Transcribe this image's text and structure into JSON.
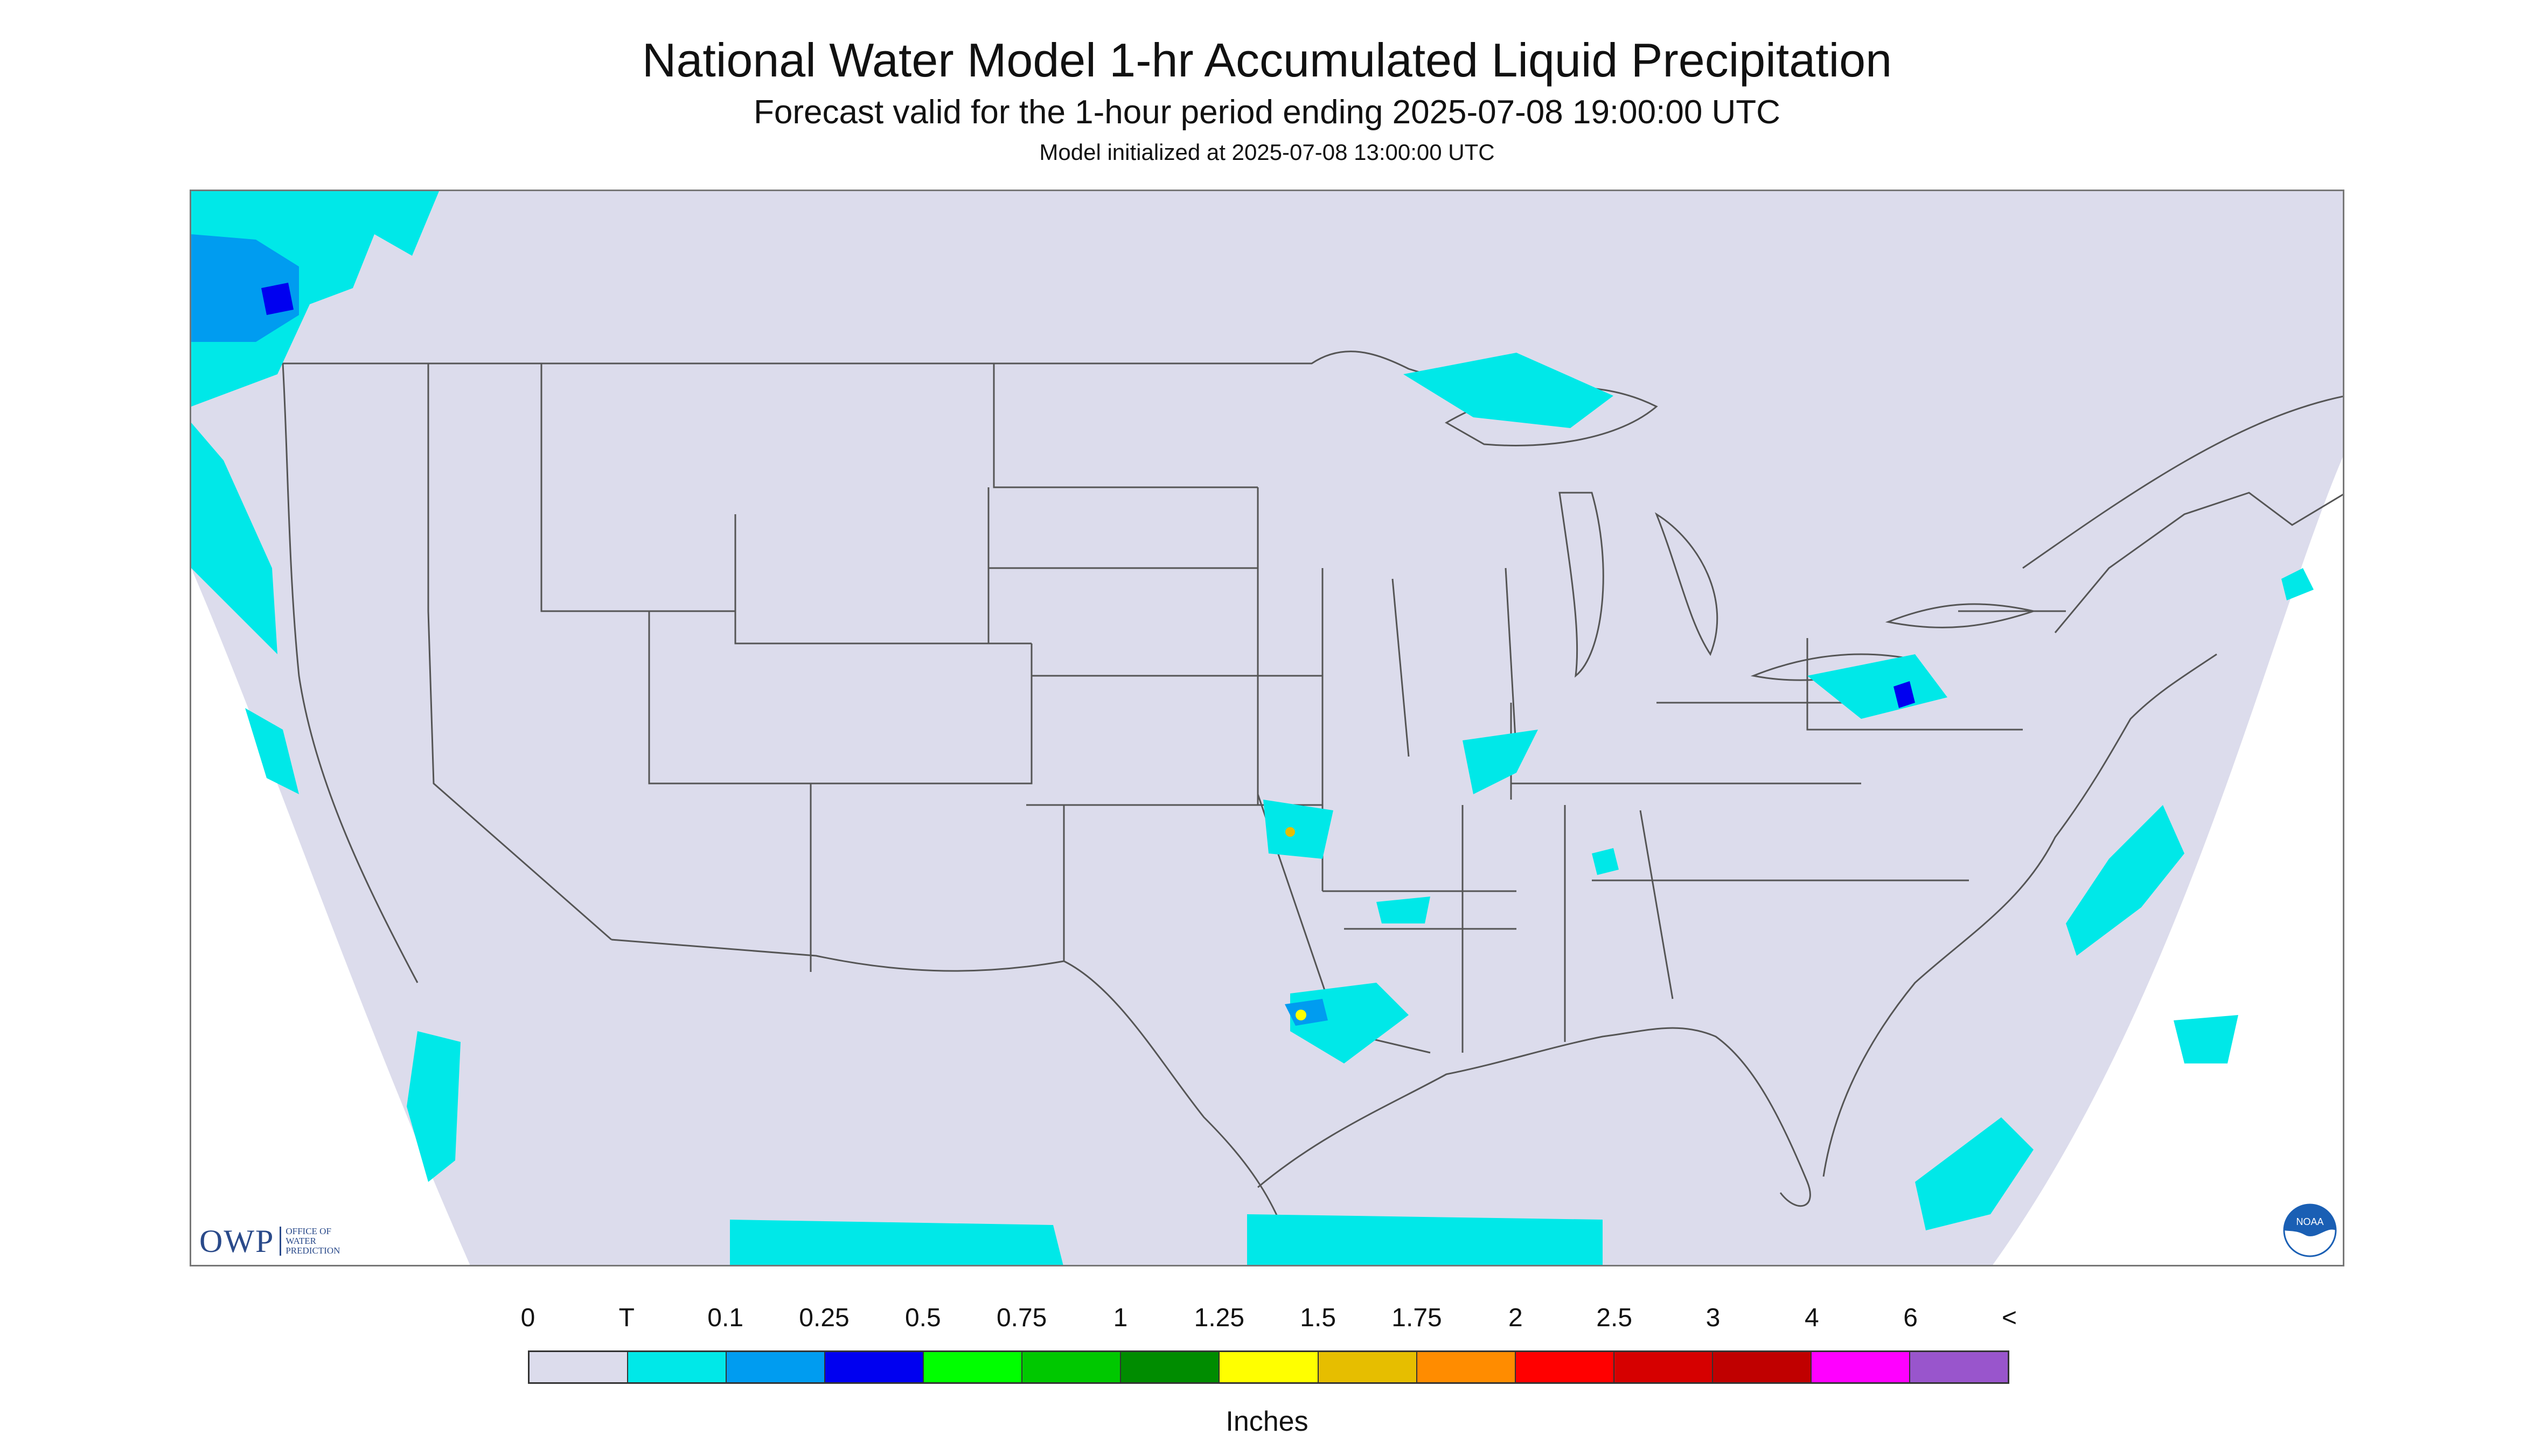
{
  "header": {
    "title": "National Water Model 1-hr Accumulated Liquid Precipitation",
    "subtitle": "Forecast valid for the 1-hour period ending 2025-07-08 19:00:00 UTC",
    "init": "Model initialized at 2025-07-08 13:00:00 UTC"
  },
  "map": {
    "background_color": "#dcdcec",
    "outside_color": "#ffffff",
    "border_color": "#444444"
  },
  "logos": {
    "owp_mark": "OWP",
    "owp_lines": [
      "OFFICE OF",
      "WATER",
      "PREDICTION"
    ],
    "noaa_text": "NOAA",
    "noaa_icon": "noaa-logo-icon"
  },
  "legend": {
    "labels": [
      "0",
      "T",
      "0.1",
      "0.25",
      "0.5",
      "0.75",
      "1",
      "1.25",
      "1.5",
      "1.75",
      "2",
      "2.5",
      "3",
      "4",
      "6",
      "<"
    ],
    "colors": [
      "#dcdcec",
      "#00e8e8",
      "#009cf0",
      "#0000f0",
      "#00ff00",
      "#00c800",
      "#008c00",
      "#ffff00",
      "#e6be00",
      "#ff8c00",
      "#ff0000",
      "#d60000",
      "#c00000",
      "#ff00ff",
      "#9955cc"
    ],
    "units": "Inches"
  }
}
